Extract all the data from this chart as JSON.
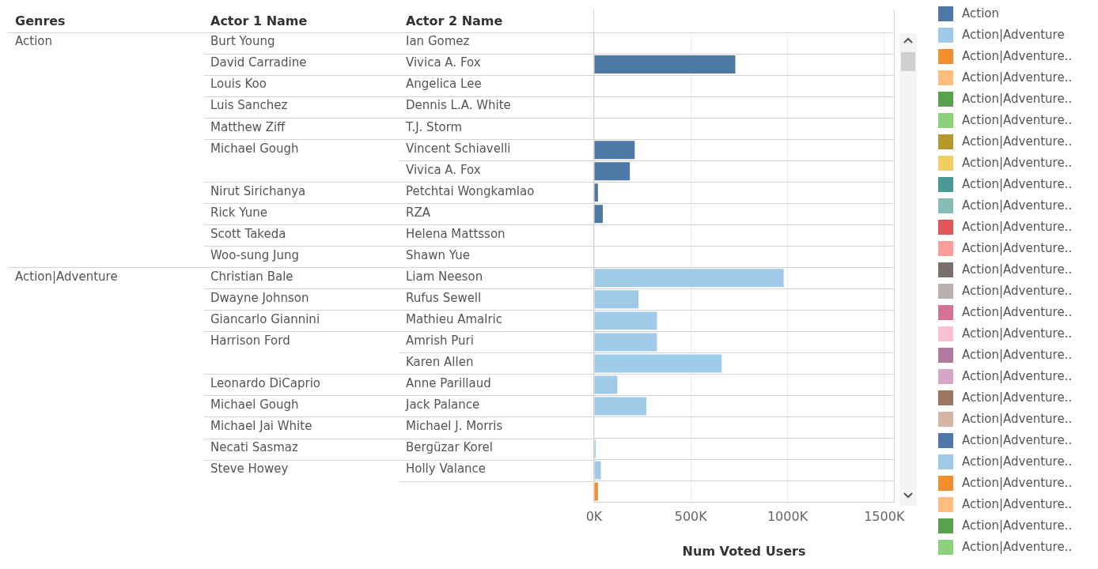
{
  "chart_data": {
    "type": "bar",
    "orientation": "horizontal",
    "xlabel": "Num Voted Users",
    "categories": [
      "Ian Gomez",
      "Vivica A. Fox",
      "Angelica Lee",
      "Dennis L.A. White",
      "T.J. Storm",
      "Vincent Schiavelli",
      "Vivica A. Fox",
      "Petchtai Wongkamlao",
      "RZA",
      "Helena Mattsson",
      "Shawn Yue",
      "Liam Neeson",
      "Rufus Sewell",
      "Mathieu Amalric",
      "Amrish Puri",
      "Karen Allen",
      "Anne Parillaud",
      "Jack Palance",
      "Michael J. Morris",
      "Bergüzar Korel",
      "Holly Valance",
      null
    ],
    "series": [
      {
        "name": "Action",
        "color": "#4e79a7",
        "values": [
          null,
          730000,
          null,
          null,
          null,
          210000,
          185000,
          20000,
          45000,
          null,
          null,
          null,
          null,
          null,
          null,
          null,
          null,
          null,
          null,
          null,
          null,
          null
        ]
      },
      {
        "name": "Action|Adventure",
        "color": "#a0cbe8",
        "values": [
          null,
          null,
          null,
          null,
          null,
          null,
          null,
          null,
          null,
          null,
          null,
          980000,
          230000,
          325000,
          325000,
          660000,
          120000,
          270000,
          null,
          8000,
          35000,
          null
        ]
      },
      {
        "name": "Action|Adventure..",
        "color": "#f28e2b",
        "values": [
          null,
          null,
          null,
          null,
          null,
          null,
          null,
          null,
          null,
          null,
          null,
          null,
          null,
          null,
          null,
          null,
          null,
          null,
          null,
          null,
          null,
          20000
        ]
      },
      {
        "name": "Action|Adventure..",
        "color": "#ffbe7d",
        "values": [
          null,
          null,
          null,
          null,
          null,
          null,
          null,
          null,
          null,
          null,
          null,
          null,
          null,
          null,
          null,
          null,
          null,
          null,
          null,
          null,
          null,
          null
        ]
      },
      {
        "name": "Action|Adventure..",
        "color": "#59a14f",
        "values": [
          null,
          null,
          null,
          null,
          null,
          null,
          null,
          null,
          null,
          null,
          null,
          null,
          null,
          null,
          null,
          null,
          null,
          null,
          null,
          null,
          null,
          null
        ]
      },
      {
        "name": "Action|Adventure..",
        "color": "#8cd17d",
        "values": [
          null,
          null,
          null,
          null,
          null,
          null,
          null,
          null,
          null,
          null,
          null,
          null,
          null,
          null,
          null,
          null,
          null,
          null,
          null,
          null,
          null,
          null
        ]
      },
      {
        "name": "Action|Adventure..",
        "color": "#b6992d",
        "values": [
          null,
          null,
          null,
          null,
          null,
          null,
          null,
          null,
          null,
          null,
          null,
          null,
          null,
          null,
          null,
          null,
          null,
          null,
          null,
          null,
          null,
          null
        ]
      },
      {
        "name": "Action|Adventure..",
        "color": "#f1ce63",
        "values": [
          null,
          null,
          null,
          null,
          null,
          null,
          null,
          null,
          null,
          null,
          null,
          null,
          null,
          null,
          null,
          null,
          null,
          null,
          null,
          null,
          null,
          null
        ]
      },
      {
        "name": "Action|Adventure..",
        "color": "#499894",
        "values": [
          null,
          null,
          null,
          null,
          null,
          null,
          null,
          null,
          null,
          null,
          null,
          null,
          null,
          null,
          null,
          null,
          null,
          null,
          null,
          null,
          null,
          null
        ]
      },
      {
        "name": "Action|Adventure..",
        "color": "#86bcb6",
        "values": [
          null,
          null,
          null,
          null,
          null,
          null,
          null,
          null,
          null,
          null,
          null,
          null,
          null,
          null,
          null,
          null,
          null,
          null,
          null,
          null,
          null,
          null
        ]
      },
      {
        "name": "Action|Adventure..",
        "color": "#e15759",
        "values": [
          null,
          null,
          null,
          null,
          null,
          null,
          null,
          null,
          null,
          null,
          null,
          null,
          null,
          null,
          null,
          null,
          null,
          null,
          null,
          null,
          null,
          null
        ]
      },
      {
        "name": "Action|Adventure..",
        "color": "#ff9d9a",
        "values": [
          null,
          null,
          null,
          null,
          null,
          null,
          null,
          null,
          null,
          null,
          null,
          null,
          null,
          null,
          null,
          null,
          null,
          null,
          null,
          null,
          null,
          null
        ]
      },
      {
        "name": "Action|Adventure..",
        "color": "#79706e",
        "values": [
          null,
          null,
          null,
          null,
          null,
          null,
          null,
          null,
          null,
          null,
          null,
          null,
          null,
          null,
          null,
          null,
          null,
          null,
          null,
          null,
          null,
          null
        ]
      },
      {
        "name": "Action|Adventure..",
        "color": "#bab0ac",
        "values": [
          null,
          null,
          null,
          null,
          null,
          null,
          null,
          null,
          null,
          null,
          null,
          null,
          null,
          null,
          null,
          null,
          null,
          null,
          null,
          null,
          null,
          null
        ]
      },
      {
        "name": "Action|Adventure..",
        "color": "#d37295",
        "values": [
          null,
          null,
          null,
          null,
          null,
          null,
          null,
          null,
          null,
          null,
          null,
          null,
          null,
          null,
          null,
          null,
          null,
          null,
          null,
          null,
          null,
          null
        ]
      },
      {
        "name": "Action|Adventure..",
        "color": "#fabfd2",
        "values": [
          null,
          null,
          null,
          null,
          null,
          null,
          null,
          null,
          null,
          null,
          null,
          null,
          null,
          null,
          null,
          null,
          null,
          null,
          null,
          null,
          null,
          null
        ]
      },
      {
        "name": "Action|Adventure..",
        "color": "#b07aa1",
        "values": [
          null,
          null,
          null,
          null,
          null,
          null,
          null,
          null,
          null,
          null,
          null,
          null,
          null,
          null,
          null,
          null,
          null,
          null,
          null,
          null,
          null,
          null
        ]
      },
      {
        "name": "Action|Adventure..",
        "color": "#d4a6c8",
        "values": [
          null,
          null,
          null,
          null,
          null,
          null,
          null,
          null,
          null,
          null,
          null,
          null,
          null,
          null,
          null,
          null,
          null,
          null,
          null,
          null,
          null,
          null
        ]
      },
      {
        "name": "Action|Adventure..",
        "color": "#9d7660",
        "values": [
          null,
          null,
          null,
          null,
          null,
          null,
          null,
          null,
          null,
          null,
          null,
          null,
          null,
          null,
          null,
          null,
          null,
          null,
          null,
          null,
          null,
          null
        ]
      },
      {
        "name": "Action|Adventure..",
        "color": "#d7b5a6",
        "values": [
          null,
          null,
          null,
          null,
          null,
          null,
          null,
          null,
          null,
          null,
          null,
          null,
          null,
          null,
          null,
          null,
          null,
          null,
          null,
          null,
          null,
          null
        ]
      },
      {
        "name": "Action|Adventure..",
        "color": "#4e79a7",
        "values": [
          null,
          null,
          null,
          null,
          null,
          null,
          null,
          null,
          null,
          null,
          null,
          null,
          null,
          null,
          null,
          null,
          null,
          null,
          null,
          null,
          null,
          null
        ]
      },
      {
        "name": "Action|Adventure..",
        "color": "#a0cbe8",
        "values": [
          null,
          null,
          null,
          null,
          null,
          null,
          null,
          null,
          null,
          null,
          null,
          null,
          null,
          null,
          null,
          null,
          null,
          null,
          null,
          null,
          null,
          null
        ]
      },
      {
        "name": "Action|Adventure..",
        "color": "#f28e2b",
        "values": [
          null,
          null,
          null,
          null,
          null,
          null,
          null,
          null,
          null,
          null,
          null,
          null,
          null,
          null,
          null,
          null,
          null,
          null,
          null,
          null,
          null,
          null
        ]
      },
      {
        "name": "Action|Adventure..",
        "color": "#ffbe7d",
        "values": [
          null,
          null,
          null,
          null,
          null,
          null,
          null,
          null,
          null,
          null,
          null,
          null,
          null,
          null,
          null,
          null,
          null,
          null,
          null,
          null,
          null,
          null
        ]
      },
      {
        "name": "Action|Adventure..",
        "color": "#59a14f",
        "values": [
          null,
          null,
          null,
          null,
          null,
          null,
          null,
          null,
          null,
          null,
          null,
          null,
          null,
          null,
          null,
          null,
          null,
          null,
          null,
          null,
          null,
          null
        ]
      },
      {
        "name": "Action|Adventure..",
        "color": "#8cd17d",
        "values": [
          null,
          null,
          null,
          null,
          null,
          null,
          null,
          null,
          null,
          null,
          null,
          null,
          null,
          null,
          null,
          null,
          null,
          null,
          null,
          null,
          null,
          null
        ]
      }
    ],
    "xlim": [
      0,
      1550000
    ],
    "xticks": [
      {
        "value": 0,
        "label": "0K"
      },
      {
        "value": 500000,
        "label": "500K"
      },
      {
        "value": 1000000,
        "label": "1000K"
      },
      {
        "value": 1500000,
        "label": "1500K"
      }
    ],
    "annotations": [
      "Genres",
      "Actor 1 Name",
      "Actor 2 Name",
      "Action",
      "Burt Young",
      "David Carradine",
      "Louis Koo",
      "Luis Sanchez",
      "Matthew Ziff",
      "Michael Gough",
      "Nirut Sirichanya",
      "Rick Yune",
      "Scott Takeda",
      "Woo-sung Jung",
      "Action|Adventure",
      "Christian Bale",
      "Dwayne Johnson",
      "Giancarlo Giannini",
      "Harrison Ford",
      "Leonardo DiCaprio",
      "Michael Gough",
      "Michael Jai White",
      "Necati Sasmaz",
      "Steve Howey"
    ],
    "grid": true,
    "legend": "right"
  }
}
